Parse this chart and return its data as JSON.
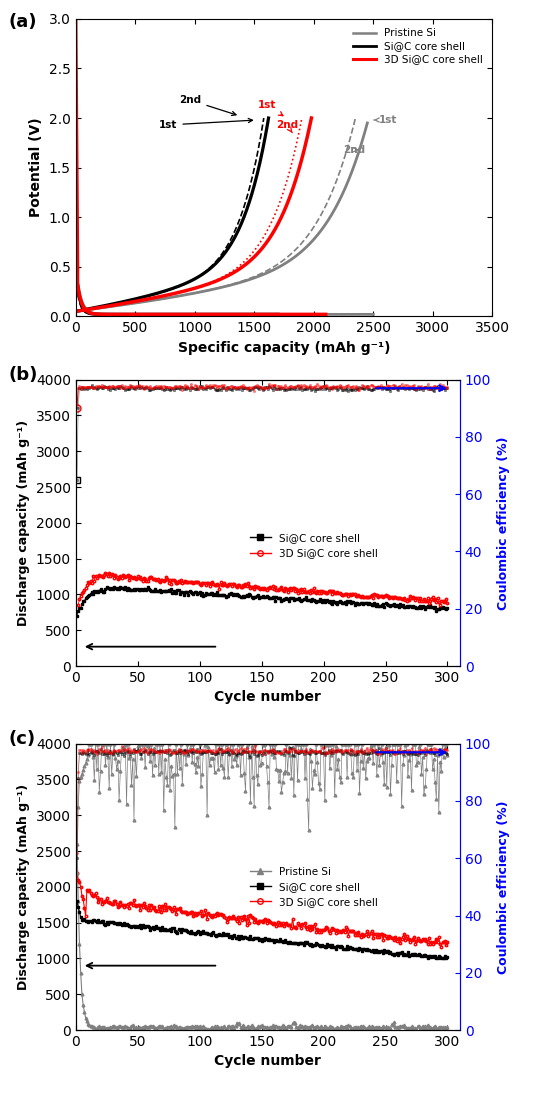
{
  "panel_a": {
    "xlabel": "Specific capacity (mAh g⁻¹)",
    "ylabel": "Potential (V)",
    "xlim": [
      0,
      3500
    ],
    "ylim": [
      0,
      3.0
    ],
    "xticks": [
      0,
      500,
      1000,
      1500,
      2000,
      2500,
      3000,
      3500
    ],
    "yticks": [
      0.0,
      0.5,
      1.0,
      1.5,
      2.0,
      2.5,
      3.0
    ]
  },
  "panel_b": {
    "xlabel": "Cycle number",
    "ylabel": "Discharge capacity (mAh g⁻¹)",
    "ylabel_right": "Coulombic efficiency (%)",
    "xlim": [
      0,
      310
    ],
    "ylim": [
      0,
      4000
    ],
    "ylim_right": [
      0,
      100
    ],
    "xticks": [
      0,
      50,
      100,
      150,
      200,
      250,
      300
    ],
    "yticks": [
      0,
      500,
      1000,
      1500,
      2000,
      2500,
      3000,
      3500,
      4000
    ],
    "yticks_right": [
      0,
      20,
      40,
      60,
      80,
      100
    ]
  },
  "panel_c": {
    "xlabel": "Cycle number",
    "ylabel": "Discharge capacity (mAh g⁻¹)",
    "ylabel_right": "Coulombic efficiency (%)",
    "xlim": [
      0,
      310
    ],
    "ylim": [
      0,
      4000
    ],
    "ylim_right": [
      0,
      100
    ],
    "xticks": [
      0,
      50,
      100,
      150,
      200,
      250,
      300
    ],
    "yticks": [
      0,
      500,
      1000,
      1500,
      2000,
      2500,
      3000,
      3500,
      4000
    ],
    "yticks_right": [
      0,
      20,
      40,
      60,
      80,
      100
    ]
  },
  "colors": {
    "gray": "#808080",
    "black": "#000000",
    "red": "#ff0000",
    "blue": "#0000ff"
  },
  "label_a": "(a)",
  "label_b": "(b)",
  "label_c": "(c)",
  "legend_a": [
    "Pristine Si",
    "Si@C core shell",
    "3D Si@C core shell"
  ],
  "legend_b": [
    "Si@C core shell",
    "3D Si@C core shell"
  ],
  "legend_c": [
    "Pristine Si",
    "Si@C core shell",
    "3D Si@C core shell"
  ]
}
